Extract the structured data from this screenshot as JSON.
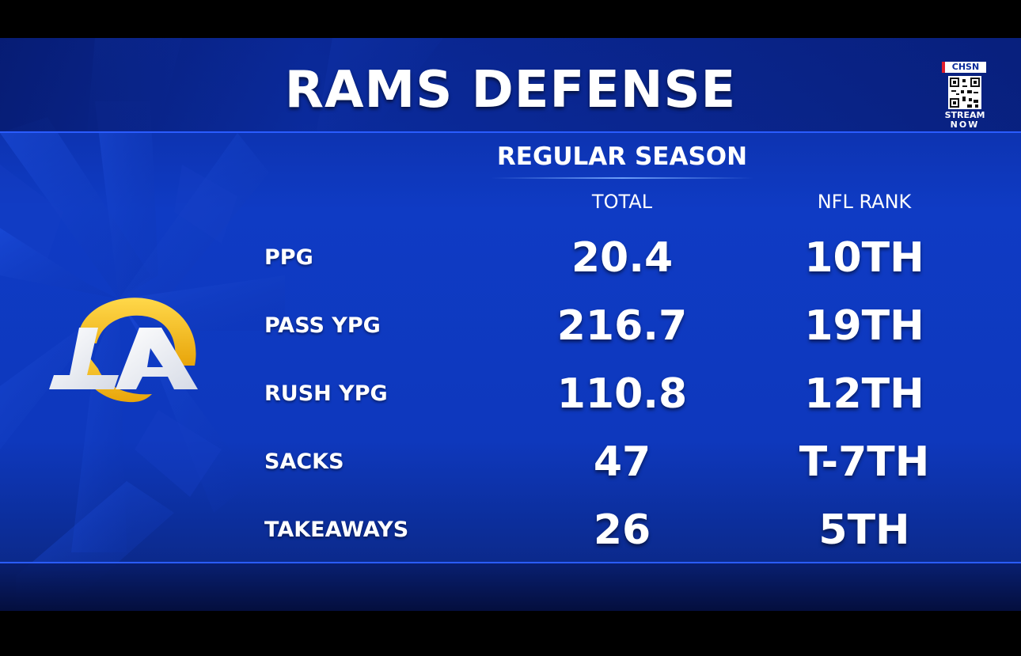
{
  "header": {
    "title": "RAMS DEFENSE",
    "subtitle": "REGULAR SEASON"
  },
  "badge": {
    "brand": "CHSN",
    "line1": "STREAM",
    "line2": "NOW"
  },
  "columns": {
    "total": "TOTAL",
    "rank": "NFL RANK"
  },
  "rows": [
    {
      "label": "PPG",
      "total": "20.4",
      "rank": "10TH"
    },
    {
      "label": "PASS YPG",
      "total": "216.7",
      "rank": "19TH"
    },
    {
      "label": "RUSH YPG",
      "total": "110.8",
      "rank": "12TH"
    },
    {
      "label": "SACKS",
      "total": "47",
      "rank": "T-7TH"
    },
    {
      "label": "TAKEAWAYS",
      "total": "26",
      "rank": "5TH"
    }
  ],
  "colors": {
    "background": "#0f3bc4",
    "accent": "#2a5cff",
    "logo_gold": "#f7c21a",
    "logo_white": "#ffffff"
  },
  "icons": {
    "team_logo": "la-rams-logo",
    "qr": "qr-code-icon"
  }
}
